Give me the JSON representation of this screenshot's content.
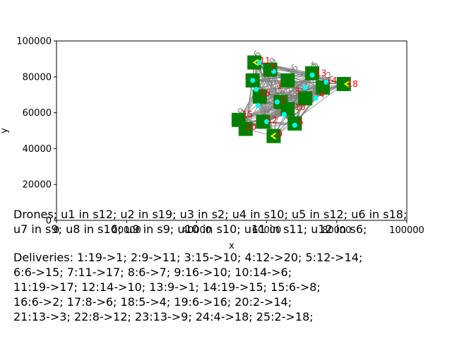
{
  "chart_data": {
    "type": "scatter",
    "title": "",
    "xlabel": "x",
    "ylabel": "y",
    "xlim": [
      0,
      100000
    ],
    "ylim": [
      0,
      100000
    ],
    "xticks": [
      0,
      20000,
      40000,
      60000,
      80000,
      100000
    ],
    "yticks": [
      0,
      20000,
      40000,
      60000,
      80000,
      100000
    ],
    "grid": false,
    "node_labels": [
      {
        "label": "1",
        "x": 63000,
        "y": 75000
      },
      {
        "label": "2",
        "x": 64000,
        "y": 67000
      },
      {
        "label": "3",
        "x": 68000,
        "y": 72000
      },
      {
        "label": "4",
        "x": 75000,
        "y": 70000
      },
      {
        "label": "5",
        "x": 69000,
        "y": 55000
      },
      {
        "label": "7",
        "x": 61000,
        "y": 85000
      },
      {
        "label": "9",
        "x": 63000,
        "y": 48000
      },
      {
        "label": "10",
        "x": 68000,
        "y": 63000
      },
      {
        "label": "11",
        "x": 58000,
        "y": 89000
      },
      {
        "label": "12",
        "x": 60000,
        "y": 56000
      },
      {
        "label": "13",
        "x": 74000,
        "y": 82000
      },
      {
        "label": "14",
        "x": 77000,
        "y": 78000
      },
      {
        "label": "15",
        "x": 53000,
        "y": 59000
      },
      {
        "label": "16",
        "x": 58000,
        "y": 71000
      },
      {
        "label": "18",
        "x": 83000,
        "y": 76000
      },
      {
        "label": "20",
        "x": 54000,
        "y": 52000
      }
    ],
    "depots": [
      {
        "x": 56500,
        "y": 88000
      },
      {
        "x": 61000,
        "y": 84000
      },
      {
        "x": 56000,
        "y": 78000
      },
      {
        "x": 66000,
        "y": 78000
      },
      {
        "x": 73000,
        "y": 82000
      },
      {
        "x": 58000,
        "y": 69000
      },
      {
        "x": 64000,
        "y": 66000
      },
      {
        "x": 71000,
        "y": 68000
      },
      {
        "x": 82000,
        "y": 76000
      },
      {
        "x": 52000,
        "y": 56000
      },
      {
        "x": 54000,
        "y": 51000
      },
      {
        "x": 59000,
        "y": 55000
      },
      {
        "x": 66000,
        "y": 62000
      },
      {
        "x": 68000,
        "y": 54000
      },
      {
        "x": 62000,
        "y": 47000
      },
      {
        "x": 76000,
        "y": 74000
      }
    ],
    "customers": [
      {
        "x": 56000,
        "y": 78000
      },
      {
        "x": 57000,
        "y": 73000
      },
      {
        "x": 57500,
        "y": 64000
      },
      {
        "x": 62000,
        "y": 83000
      },
      {
        "x": 63000,
        "y": 66000
      },
      {
        "x": 65000,
        "y": 59000
      },
      {
        "x": 60000,
        "y": 55000
      },
      {
        "x": 71000,
        "y": 74000
      },
      {
        "x": 73000,
        "y": 81000
      },
      {
        "x": 74000,
        "y": 68000
      },
      {
        "x": 77000,
        "y": 77000
      },
      {
        "x": 68000,
        "y": 53000
      },
      {
        "x": 58000,
        "y": 88000
      }
    ],
    "drone_markers": [
      {
        "x": 57000,
        "y": 88000
      },
      {
        "x": 62000,
        "y": 47000
      },
      {
        "x": 83000,
        "y": 76000
      }
    ],
    "grey_labels": [
      "6",
      "16",
      "5",
      "9",
      "55",
      "92",
      "2",
      "8",
      "2",
      "6",
      "9",
      "5",
      "5",
      "5"
    ],
    "colors": {
      "depot": "#007f00",
      "customer": "#00ffff",
      "edge": "#808080",
      "node_label": "#ff0000",
      "drone": "#ffff00"
    }
  },
  "captions": {
    "drones_line1": "Drones; u1 in s12; u2 in s19; u3 in s2; u4 in s10; u5 in s12; u6 in s18;",
    "drones_line2": "u7 in s9; u8 in s16; u9 in s9; u10 in s10; u11 in s11; u12 in s6;",
    "deliveries_line1": "Deliveries: 1:19->1; 2:9->11; 3:15->10; 4:12->20; 5:12->14;",
    "deliveries_line2": "6:6->15; 7:11->17; 8:6->7; 9:16->10; 10:14->6;",
    "deliveries_line3": "11:19->17; 12:14->10; 13:9->1; 14:19->15; 15:6->8;",
    "deliveries_line4": "16:6->2; 17:8->6; 18:5->4; 19:6->16; 20:2->14;",
    "deliveries_line5": "21:13->3; 22:8->12; 23:13->9; 24:4->18; 25:2->18;"
  }
}
